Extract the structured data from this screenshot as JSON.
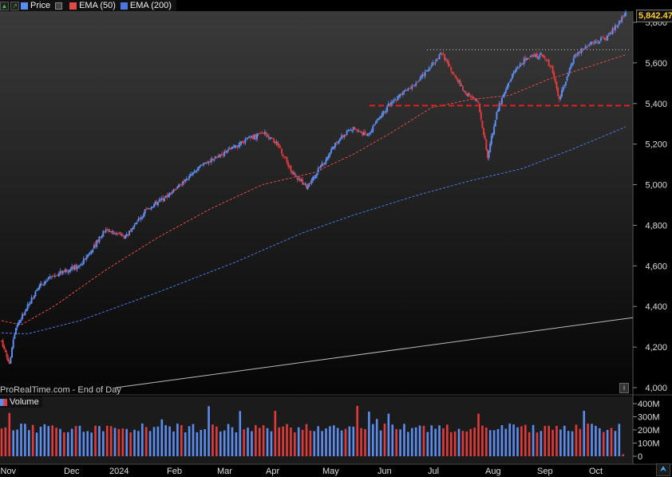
{
  "legend": {
    "price_label": "Price",
    "ema50_label": "EMA (50)",
    "ema200_label": "EMA (200)",
    "volume_label": "Volume"
  },
  "source_label": "ProRealTime.com - End of Day",
  "last_price": "5,842.47",
  "colors": {
    "up": "#5b8df0",
    "down": "#e03a3a",
    "ema50": "#e24a4a",
    "ema200": "#4a78e0",
    "resistance": "#e02020",
    "support_line": "#bbbbbb"
  },
  "chart_data": {
    "type": "candlestick",
    "title": "",
    "price_axis": {
      "ticks": [
        "5,800",
        "5,600",
        "5,400",
        "5,200",
        "5,000",
        "4,800",
        "4,600",
        "4,400",
        "4,200",
        "4,000"
      ],
      "range": [
        4000,
        5900
      ]
    },
    "volume_axis": {
      "ticks": [
        "400M",
        "300M",
        "200M",
        "100M",
        "0"
      ],
      "range": [
        0,
        450
      ]
    },
    "x_ticks": [
      "Nov",
      "Dec",
      "2024",
      "Feb",
      "Mar",
      "Apr",
      "May",
      "Jun",
      "Jul",
      "Aug",
      "Sep",
      "Oct"
    ],
    "price_keypoints": [
      {
        "i": 0,
        "p": 4230
      },
      {
        "i": 6,
        "p": 4120
      },
      {
        "i": 11,
        "p": 4300
      },
      {
        "i": 20,
        "p": 4400
      },
      {
        "i": 28,
        "p": 4500
      },
      {
        "i": 45,
        "p": 4570
      },
      {
        "i": 60,
        "p": 4600
      },
      {
        "i": 80,
        "p": 4780
      },
      {
        "i": 95,
        "p": 4740
      },
      {
        "i": 110,
        "p": 4870
      },
      {
        "i": 130,
        "p": 4960
      },
      {
        "i": 155,
        "p": 5100
      },
      {
        "i": 175,
        "p": 5170
      },
      {
        "i": 190,
        "p": 5230
      },
      {
        "i": 202,
        "p": 5250
      },
      {
        "i": 212,
        "p": 5200
      },
      {
        "i": 224,
        "p": 5050
      },
      {
        "i": 234,
        "p": 4990
      },
      {
        "i": 246,
        "p": 5100
      },
      {
        "i": 258,
        "p": 5220
      },
      {
        "i": 270,
        "p": 5280
      },
      {
        "i": 280,
        "p": 5240
      },
      {
        "i": 298,
        "p": 5400
      },
      {
        "i": 318,
        "p": 5500
      },
      {
        "i": 328,
        "p": 5570
      },
      {
        "i": 338,
        "p": 5650
      },
      {
        "i": 346,
        "p": 5550
      },
      {
        "i": 356,
        "p": 5450
      },
      {
        "i": 366,
        "p": 5400
      },
      {
        "i": 373,
        "p": 5140
      },
      {
        "i": 381,
        "p": 5380
      },
      {
        "i": 392,
        "p": 5540
      },
      {
        "i": 402,
        "p": 5620
      },
      {
        "i": 414,
        "p": 5640
      },
      {
        "i": 422,
        "p": 5580
      },
      {
        "i": 428,
        "p": 5420
      },
      {
        "i": 440,
        "p": 5640
      },
      {
        "i": 452,
        "p": 5700
      },
      {
        "i": 464,
        "p": 5720
      },
      {
        "i": 474,
        "p": 5800
      },
      {
        "i": 479,
        "p": 5842
      }
    ],
    "ema50_keypoints": [
      {
        "i": 0,
        "p": 4330
      },
      {
        "i": 15,
        "p": 4310
      },
      {
        "i": 40,
        "p": 4400
      },
      {
        "i": 80,
        "p": 4580
      },
      {
        "i": 120,
        "p": 4740
      },
      {
        "i": 160,
        "p": 4880
      },
      {
        "i": 200,
        "p": 5000
      },
      {
        "i": 240,
        "p": 5060
      },
      {
        "i": 270,
        "p": 5150
      },
      {
        "i": 300,
        "p": 5260
      },
      {
        "i": 330,
        "p": 5380
      },
      {
        "i": 360,
        "p": 5420
      },
      {
        "i": 390,
        "p": 5440
      },
      {
        "i": 420,
        "p": 5520
      },
      {
        "i": 450,
        "p": 5580
      },
      {
        "i": 479,
        "p": 5640
      }
    ],
    "ema200_keypoints": [
      {
        "i": 0,
        "p": 4270
      },
      {
        "i": 20,
        "p": 4265
      },
      {
        "i": 60,
        "p": 4330
      },
      {
        "i": 120,
        "p": 4470
      },
      {
        "i": 180,
        "p": 4620
      },
      {
        "i": 230,
        "p": 4760
      },
      {
        "i": 270,
        "p": 4850
      },
      {
        "i": 320,
        "p": 4950
      },
      {
        "i": 360,
        "p": 5020
      },
      {
        "i": 400,
        "p": 5080
      },
      {
        "i": 440,
        "p": 5180
      },
      {
        "i": 479,
        "p": 5285
      }
    ],
    "resistance_level": 5390,
    "recent_high_level": 5665,
    "support_line": {
      "from": 4000,
      "to": 4345
    }
  }
}
